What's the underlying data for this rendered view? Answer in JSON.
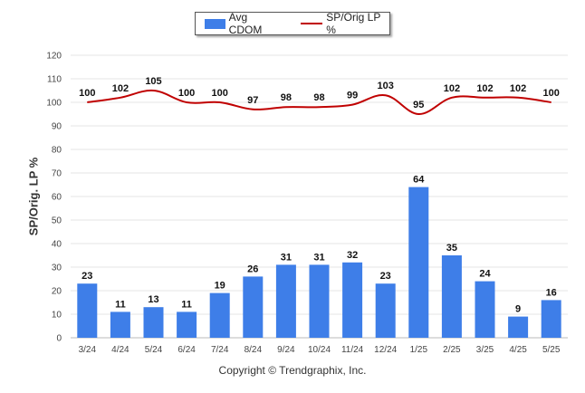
{
  "legend": {
    "bar_label": "Avg CDOM",
    "line_label": "SP/Orig LP %"
  },
  "credit": "Copyright © Trendgraphix, Inc.",
  "chart_data": {
    "type": "bar",
    "categories": [
      "3/24",
      "4/24",
      "5/24",
      "6/24",
      "7/24",
      "8/24",
      "9/24",
      "10/24",
      "11/24",
      "12/24",
      "1/25",
      "2/25",
      "3/25",
      "4/25",
      "5/25"
    ],
    "series": [
      {
        "name": "Avg CDOM",
        "type": "bar",
        "color": "#3e7ee8",
        "values": [
          23,
          11,
          13,
          11,
          19,
          26,
          31,
          31,
          32,
          23,
          64,
          35,
          24,
          9,
          16
        ]
      },
      {
        "name": "SP/Orig LP %",
        "type": "line",
        "color": "#c00000",
        "values": [
          100,
          102,
          105,
          100,
          100,
          97,
          98,
          98,
          99,
          103,
          95,
          102,
          102,
          102,
          100
        ]
      }
    ],
    "ylabel": "SP/Orig. LP %",
    "xlabel": "",
    "ylim": [
      0,
      120
    ],
    "yticks": [
      0,
      10,
      20,
      30,
      40,
      50,
      60,
      70,
      80,
      90,
      100,
      110,
      120
    ],
    "grid": true,
    "legend_position": "top-center"
  }
}
